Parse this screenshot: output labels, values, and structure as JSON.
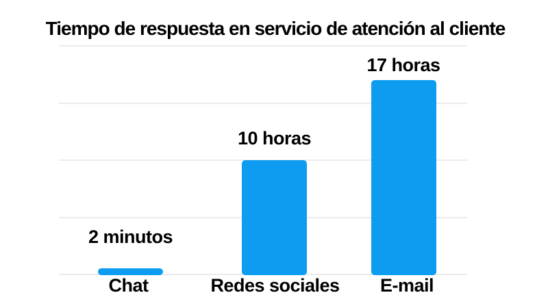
{
  "chart_data": {
    "type": "bar",
    "title": "Tiempo de respuesta en servicio de atención al cliente",
    "categories": [
      "Chat",
      "Redes sociales",
      "E-mail"
    ],
    "values": [
      0.033,
      10,
      17
    ],
    "value_labels": [
      "2 minutos",
      "10 horas",
      "17 horas"
    ],
    "unit": "horas",
    "ylim": [
      0,
      20
    ],
    "gridline_interval": 5,
    "gridline_count": 5,
    "grid": "on",
    "legend": "none",
    "axis_tick_labels": "none",
    "colors": {
      "bar": "#0D9CF0",
      "grid": "#ebebeb",
      "text": "#000000",
      "background": "#ffffff"
    }
  }
}
